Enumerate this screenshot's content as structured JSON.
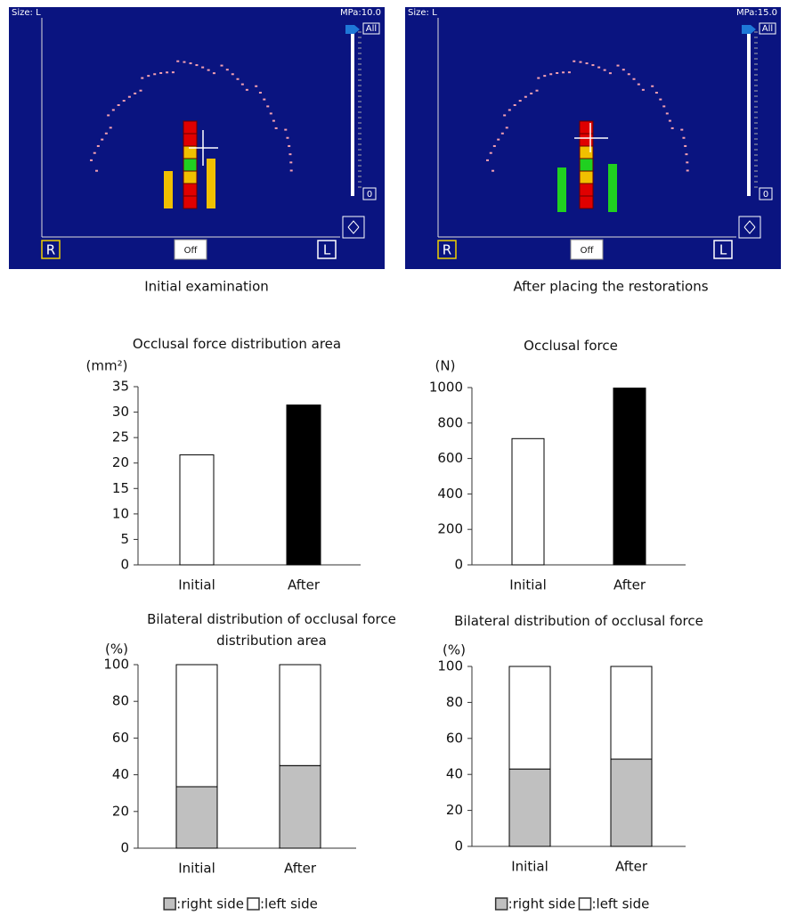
{
  "screenshots": [
    {
      "size_label": "Size: L",
      "pressure_label": "MPa:10.0",
      "scale_all": "All",
      "scale_zero": "0",
      "toggle": "Off",
      "right_marker": "R",
      "left_marker": "L",
      "caption": "Initial examination"
    },
    {
      "size_label": "Size: L",
      "pressure_label": "MPa:15.0",
      "scale_all": "All",
      "scale_zero": "0",
      "toggle": "Off",
      "right_marker": "R",
      "left_marker": "L",
      "caption": "After placing the restorations"
    }
  ],
  "chart_data": [
    {
      "type": "bar",
      "title": "Occlusal force distribution area",
      "y_label": "(mm²)",
      "categories": [
        "Initial",
        "After"
      ],
      "values": [
        21.6,
        31.4
      ],
      "colors": [
        "#ffffff",
        "#000000"
      ],
      "ylim": [
        0,
        35
      ],
      "yticks": [
        0,
        5,
        10,
        15,
        20,
        25,
        30,
        35
      ]
    },
    {
      "type": "bar",
      "title": "Occlusal force",
      "y_label": "(N)",
      "categories": [
        "Initial",
        "After"
      ],
      "values": [
        712,
        997
      ],
      "colors": [
        "#ffffff",
        "#000000"
      ],
      "ylim": [
        0,
        1000
      ],
      "yticks": [
        0,
        200,
        400,
        600,
        800,
        1000
      ]
    },
    {
      "type": "stacked_bar",
      "title": "Bilateral distribution of occlusal force distribution area",
      "y_label": "(%)",
      "categories": [
        "Initial",
        "After"
      ],
      "series": [
        {
          "name": ":right side",
          "color": "#c0c0c0",
          "values": [
            33.5,
            45
          ]
        },
        {
          "name": ":left side",
          "color": "#ffffff",
          "values": [
            66.5,
            55
          ]
        }
      ],
      "ylim": [
        0,
        100
      ],
      "yticks": [
        0,
        20,
        40,
        60,
        80,
        100
      ]
    },
    {
      "type": "stacked_bar",
      "title": "Bilateral distribution of occlusal force",
      "y_label": "(%)",
      "categories": [
        "Initial",
        "After"
      ],
      "series": [
        {
          "name": ":right side",
          "color": "#c0c0c0",
          "values": [
            43,
            48.5
          ]
        },
        {
          "name": ":left side",
          "color": "#ffffff",
          "values": [
            57,
            51.5
          ]
        }
      ],
      "ylim": [
        0,
        100
      ],
      "yticks": [
        0,
        20,
        40,
        60,
        80,
        100
      ]
    }
  ]
}
